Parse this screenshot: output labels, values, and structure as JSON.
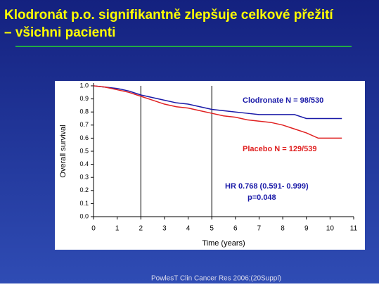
{
  "slide": {
    "title_lines": [
      "Klodronát p.o. signifikantně zlepšuje celkové přežití",
      "– všichni pacienti"
    ],
    "footnote": "PowlesT Clin Cancer Res 2006;(20Suppl)"
  },
  "chart_data": {
    "type": "line",
    "x_label": "Time  (years)",
    "y_label": "Overall  survival",
    "x": [
      0,
      0.5,
      1,
      1.5,
      2,
      2.5,
      3,
      3.5,
      4,
      4.5,
      5,
      5.5,
      6,
      6.5,
      7,
      7.5,
      8,
      8.5,
      9,
      9.5,
      10,
      10.5
    ],
    "series": [
      {
        "name": "Clodronate N = 98/530",
        "color": "#1a1aa8",
        "values": [
          1.0,
          0.99,
          0.98,
          0.96,
          0.93,
          0.91,
          0.89,
          0.87,
          0.86,
          0.84,
          0.82,
          0.81,
          0.8,
          0.79,
          0.78,
          0.78,
          0.78,
          0.78,
          0.75,
          0.75,
          0.75,
          0.75
        ]
      },
      {
        "name": "Placebo  N = 129/539",
        "color": "#e02020",
        "values": [
          1.0,
          0.99,
          0.97,
          0.95,
          0.92,
          0.89,
          0.86,
          0.84,
          0.83,
          0.81,
          0.79,
          0.77,
          0.76,
          0.74,
          0.73,
          0.72,
          0.7,
          0.67,
          0.64,
          0.6,
          0.6,
          0.6
        ]
      }
    ],
    "annotations": [
      {
        "text": "HR 0.768 (0.591- 0.999)",
        "color": "#1a1aa8"
      },
      {
        "text": "p=0.048",
        "color": "#1a1aa8"
      }
    ],
    "vlines": [
      2,
      5
    ],
    "xlim": [
      0,
      11
    ],
    "xticks": [
      0,
      1,
      2,
      3,
      4,
      5,
      6,
      7,
      8,
      9,
      10,
      11
    ],
    "ylim": [
      0,
      1
    ],
    "yticks": [
      {
        "value": 0,
        "label": "0.0"
      },
      0.1,
      0.2,
      0.3,
      0.4,
      0.5,
      0.6,
      0.7,
      0.8,
      0.9,
      {
        "value": 1,
        "label": "1.0"
      }
    ]
  }
}
